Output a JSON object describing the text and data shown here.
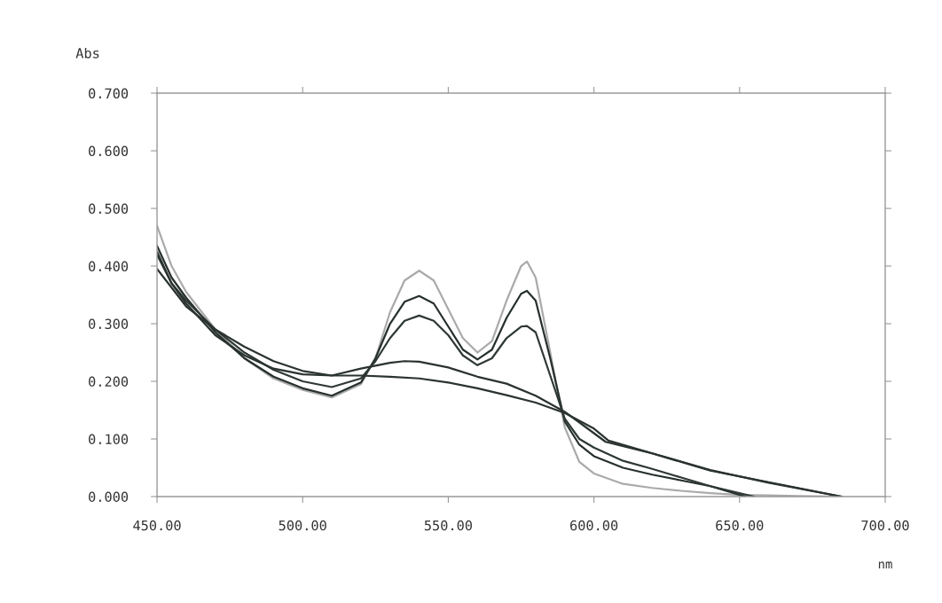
{
  "chart_data": {
    "type": "line",
    "xlabel": "nm",
    "ylabel": "Abs",
    "xlim": [
      450,
      700
    ],
    "ylim": [
      0,
      0.7
    ],
    "xticks": [
      {
        "value": 450,
        "label": "450.00"
      },
      {
        "value": 500,
        "label": "500.00"
      },
      {
        "value": 550,
        "label": "550.00"
      },
      {
        "value": 600,
        "label": "600.00"
      },
      {
        "value": 650,
        "label": "650.00"
      },
      {
        "value": 700,
        "label": "700.00"
      }
    ],
    "yticks": [
      {
        "value": 0,
        "label": "0.000"
      },
      {
        "value": 0.1,
        "label": "0.100"
      },
      {
        "value": 0.2,
        "label": "0.200"
      },
      {
        "value": 0.3,
        "label": "0.300"
      },
      {
        "value": 0.4,
        "label": "0.400"
      },
      {
        "value": 0.5,
        "label": "0.500"
      },
      {
        "value": 0.6,
        "label": "0.600"
      },
      {
        "value": 0.7,
        "label": "0.700"
      }
    ],
    "grid": false,
    "series": [
      {
        "color": "#aaaaaa",
        "x": [
          450,
          455,
          460,
          470,
          480,
          490,
          500,
          510,
          520,
          525,
          530,
          535,
          540,
          545,
          550,
          555,
          560,
          565,
          570,
          575,
          577,
          580,
          585,
          590,
          595,
          600,
          610,
          620,
          630,
          640,
          650,
          660,
          670,
          680,
          685
        ],
        "values": [
          0.47,
          0.4,
          0.355,
          0.29,
          0.24,
          0.205,
          0.185,
          0.172,
          0.195,
          0.24,
          0.32,
          0.375,
          0.392,
          0.375,
          0.325,
          0.275,
          0.25,
          0.27,
          0.34,
          0.4,
          0.408,
          0.38,
          0.25,
          0.12,
          0.06,
          0.04,
          0.022,
          0.015,
          0.01,
          0.006,
          0.003,
          0.002,
          0.001,
          0,
          0
        ]
      },
      {
        "color": "#26302c",
        "x": [
          450,
          455,
          460,
          470,
          480,
          490,
          500,
          510,
          520,
          525,
          530,
          535,
          540,
          545,
          550,
          555,
          560,
          565,
          570,
          575,
          577,
          580,
          585,
          590,
          595,
          600,
          610,
          620,
          630,
          640,
          652
        ],
        "values": [
          0.435,
          0.38,
          0.345,
          0.285,
          0.24,
          0.208,
          0.188,
          0.175,
          0.198,
          0.24,
          0.3,
          0.338,
          0.348,
          0.335,
          0.295,
          0.255,
          0.238,
          0.255,
          0.31,
          0.352,
          0.357,
          0.34,
          0.24,
          0.13,
          0.09,
          0.07,
          0.05,
          0.038,
          0.028,
          0.018,
          0
        ]
      },
      {
        "color": "#2e3834",
        "x": [
          450,
          455,
          460,
          470,
          480,
          490,
          500,
          510,
          520,
          525,
          530,
          535,
          540,
          545,
          550,
          555,
          560,
          565,
          570,
          575,
          577,
          580,
          585,
          590,
          595,
          600,
          610,
          620,
          630,
          640,
          655
        ],
        "values": [
          0.425,
          0.37,
          0.34,
          0.29,
          0.25,
          0.22,
          0.2,
          0.19,
          0.205,
          0.235,
          0.275,
          0.305,
          0.314,
          0.305,
          0.28,
          0.245,
          0.228,
          0.24,
          0.275,
          0.295,
          0.296,
          0.285,
          0.21,
          0.135,
          0.1,
          0.085,
          0.062,
          0.048,
          0.033,
          0.018,
          0
        ]
      },
      {
        "color": "#2a332f",
        "x": [
          450,
          455,
          460,
          470,
          480,
          490,
          500,
          510,
          520,
          530,
          535,
          540,
          550,
          560,
          570,
          580,
          590,
          600,
          604,
          620,
          640,
          660,
          685
        ],
        "values": [
          0.42,
          0.37,
          0.335,
          0.28,
          0.245,
          0.222,
          0.212,
          0.21,
          0.222,
          0.232,
          0.235,
          0.234,
          0.224,
          0.208,
          0.196,
          0.175,
          0.147,
          0.11,
          0.095,
          0.075,
          0.045,
          0.025,
          0
        ]
      },
      {
        "color": "#2a332f",
        "x": [
          450,
          460,
          470,
          480,
          490,
          500,
          510,
          520,
          530,
          540,
          550,
          560,
          570,
          580,
          590,
          600,
          605,
          620,
          640,
          660,
          685
        ],
        "values": [
          0.395,
          0.33,
          0.29,
          0.26,
          0.235,
          0.218,
          0.21,
          0.21,
          0.208,
          0.205,
          0.198,
          0.188,
          0.176,
          0.163,
          0.145,
          0.118,
          0.097,
          0.075,
          0.046,
          0.024,
          0
        ]
      }
    ]
  }
}
